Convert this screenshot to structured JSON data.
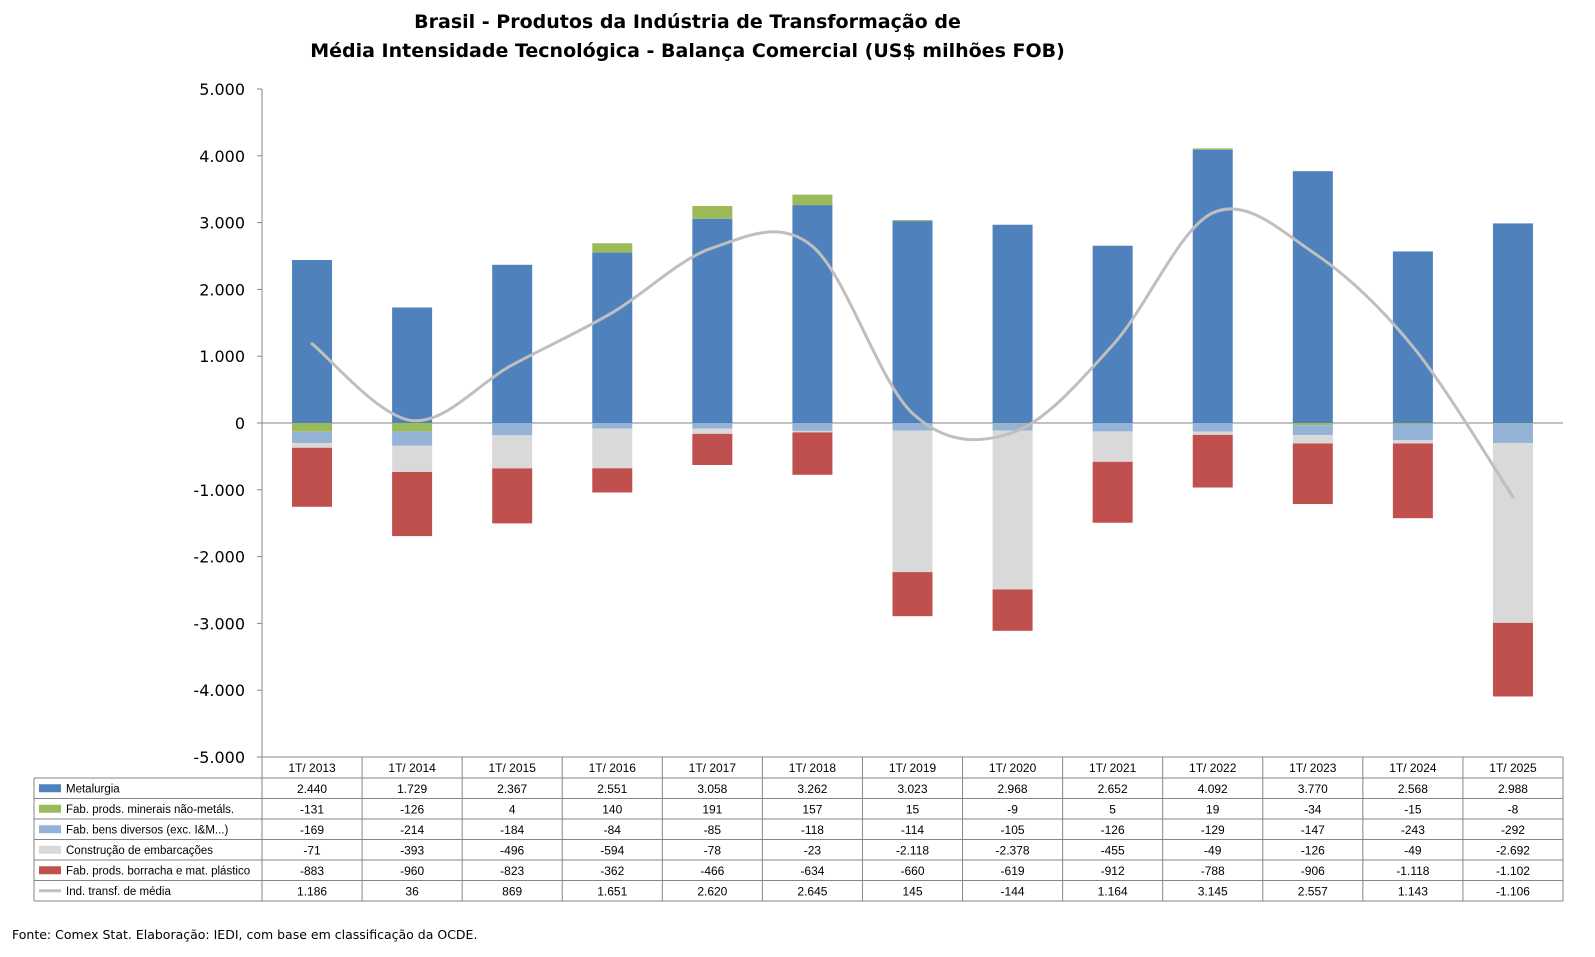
{
  "title_line1": "Brasil - Produtos da Indústria de Transformação de",
  "title_line2": "Média Intensidade Tecnológica - Balança Comercial (US$ milhões FOB)",
  "source": "Fonte:  Comex Stat. Elaboração: IEDI, com base em classificação da OCDE.",
  "chart_data": {
    "type": "bar",
    "stacked": true,
    "title": "Brasil - Produtos da Indústria de Transformação de Média Intensidade Tecnológica - Balança Comercial (US$ milhões FOB)",
    "categories": [
      "1T/ 2013",
      "1T/ 2014",
      "1T/ 2015",
      "1T/ 2016",
      "1T/ 2017",
      "1T/ 2018",
      "1T/ 2019",
      "1T/ 2020",
      "1T/ 2021",
      "1T/ 2022",
      "1T/ 2023",
      "1T/ 2024",
      "1T/ 2025"
    ],
    "ylim": [
      -5000,
      5000
    ],
    "yticks": [
      5000,
      4000,
      3000,
      2000,
      1000,
      0,
      -1000,
      -2000,
      -3000,
      -4000,
      -5000
    ],
    "ytick_labels": [
      "5.000",
      "4.000",
      "3.000",
      "2.000",
      "1.000",
      "0",
      "-1.000",
      "-2.000",
      "-3.000",
      "-4.000",
      "-5.000"
    ],
    "grid": false,
    "legend": "data-table",
    "series": [
      {
        "name": "Metalurgia",
        "kind": "bar",
        "color": "#4F81BD",
        "values": [
          2440,
          1729,
          2367,
          2551,
          3058,
          3262,
          3023,
          2968,
          2652,
          4092,
          3770,
          2568,
          2988
        ],
        "labels": [
          "2.440",
          "1.729",
          "2.367",
          "2.551",
          "3.058",
          "3.262",
          "3.023",
          "2.968",
          "2.652",
          "4.092",
          "3.770",
          "2.568",
          "2.988"
        ]
      },
      {
        "name": "Fab. prods. minerais não-metáls.",
        "kind": "bar",
        "color": "#9BBB59",
        "values": [
          -131,
          -126,
          4,
          140,
          191,
          157,
          15,
          -9,
          5,
          19,
          -34,
          -15,
          -8
        ],
        "labels": [
          "-131",
          "-126",
          "4",
          "140",
          "191",
          "157",
          "15",
          "-9",
          "5",
          "19",
          "-34",
          "-15",
          "-8"
        ]
      },
      {
        "name": "Fab. bens diversos (exc. I&M...)",
        "kind": "bar",
        "color": "#95B3D7",
        "values": [
          -169,
          -214,
          -184,
          -84,
          -85,
          -118,
          -114,
          -105,
          -126,
          -129,
          -147,
          -243,
          -292
        ],
        "labels": [
          "-169",
          "-214",
          "-184",
          "-84",
          "-85",
          "-118",
          "-114",
          "-105",
          "-126",
          "-129",
          "-147",
          "-243",
          "-292"
        ]
      },
      {
        "name": "Construção de embarcações",
        "kind": "bar",
        "color": "#D9D9D9",
        "values": [
          -71,
          -393,
          -496,
          -594,
          -78,
          -23,
          -2118,
          -2378,
          -455,
          -49,
          -126,
          -49,
          -2692
        ],
        "labels": [
          "-71",
          "-393",
          "-496",
          "-594",
          "-78",
          "-23",
          "-2.118",
          "-2.378",
          "-455",
          "-49",
          "-126",
          "-49",
          "-2.692"
        ]
      },
      {
        "name": "Fab. prods. borracha e mat. plástico",
        "kind": "bar",
        "color": "#C0504D",
        "values": [
          -883,
          -960,
          -823,
          -362,
          -466,
          -634,
          -660,
          -619,
          -912,
          -788,
          -906,
          -1118,
          -1102
        ],
        "labels": [
          "-883",
          "-960",
          "-823",
          "-362",
          "-466",
          "-634",
          "-660",
          "-619",
          "-912",
          "-788",
          "-906",
          "-1.118",
          "-1.102"
        ]
      },
      {
        "name": "Ind. transf. de média",
        "kind": "line",
        "color": "#BFBFBF",
        "values": [
          1186,
          36,
          869,
          1651,
          2620,
          2645,
          145,
          -144,
          1164,
          3145,
          2557,
          1143,
          -1106
        ],
        "labels": [
          "1.186",
          "36",
          "869",
          "1.651",
          "2.620",
          "2.645",
          "145",
          "-144",
          "1.164",
          "3.145",
          "2.557",
          "1.143",
          "-1.106"
        ]
      }
    ]
  }
}
